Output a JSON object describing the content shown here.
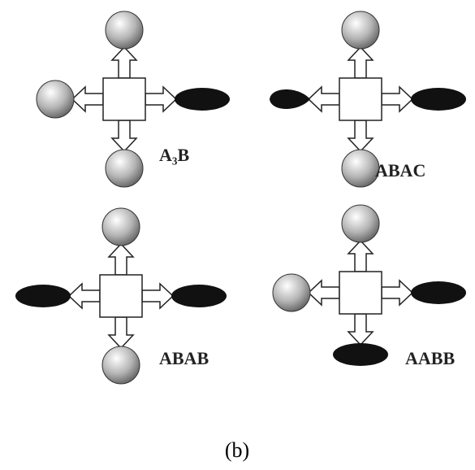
{
  "molecules": [
    {
      "label": "A₃B"
    },
    {
      "label": "ABAC"
    },
    {
      "label": "ABAB"
    },
    {
      "label": "AABB"
    }
  ],
  "caption": "(b)"
}
